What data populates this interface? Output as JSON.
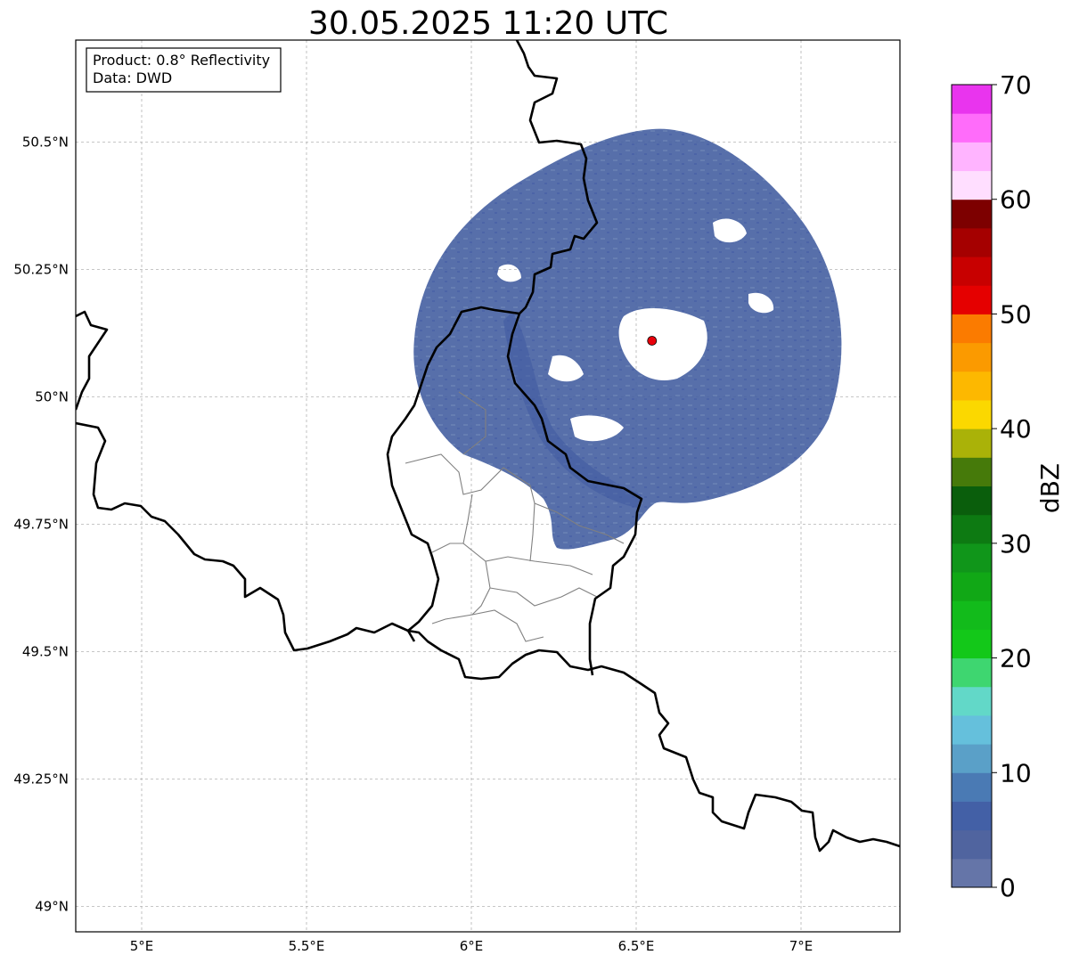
{
  "title": "30.05.2025 11:20 UTC",
  "info_box": {
    "product_line": "Product: 0.8° Reflectivity",
    "data_line": "Data: DWD"
  },
  "map": {
    "lon_range": [
      4.8,
      7.3
    ],
    "lat_range": [
      48.95,
      50.7
    ],
    "lon_ticks": [
      {
        "value": 5.0,
        "label": "5°E"
      },
      {
        "value": 5.5,
        "label": "5.5°E"
      },
      {
        "value": 6.0,
        "label": "6°E"
      },
      {
        "value": 6.5,
        "label": "6.5°E"
      },
      {
        "value": 7.0,
        "label": "7°E"
      }
    ],
    "lat_ticks": [
      {
        "value": 50.5,
        "label": "50.5°N"
      },
      {
        "value": 50.25,
        "label": "50.25°N"
      },
      {
        "value": 50.0,
        "label": "50°N"
      },
      {
        "value": 49.75,
        "label": "49.75°N"
      },
      {
        "value": 49.5,
        "label": "49.5°N"
      },
      {
        "value": 49.25,
        "label": "49.25°N"
      },
      {
        "value": 49.0,
        "label": "49°N"
      }
    ],
    "grid": true,
    "radar_site": {
      "lon": 6.548,
      "lat": 50.11,
      "color": "#e8000b"
    },
    "echo_color": "#4a64a4",
    "border_color": "#000000",
    "district_color": "#808080"
  },
  "colorbar": {
    "label": "dBZ",
    "min": 0,
    "max": 70,
    "step": 2.5,
    "ticks": [
      {
        "value": 0,
        "label": "0"
      },
      {
        "value": 10,
        "label": "10"
      },
      {
        "value": 20,
        "label": "20"
      },
      {
        "value": 30,
        "label": "30"
      },
      {
        "value": 40,
        "label": "40"
      },
      {
        "value": 50,
        "label": "50"
      },
      {
        "value": 60,
        "label": "60"
      },
      {
        "value": 70,
        "label": "70"
      }
    ],
    "colors": [
      "#6575a8",
      "#50649f",
      "#4360a6",
      "#4a7ab4",
      "#5aa0c8",
      "#65c0dc",
      "#62d8c8",
      "#3ed670",
      "#13c819",
      "#12bb1b",
      "#11a816",
      "#10961a",
      "#0d7a12",
      "#0a5e0c",
      "#467a0a",
      "#aab208",
      "#fbd800",
      "#fdb800",
      "#fb9a00",
      "#fb7b00",
      "#e50000",
      "#c80000",
      "#a50000",
      "#7d0000",
      "#ffdeff",
      "#ffb4ff",
      "#ff6cfa",
      "#e934ee"
    ]
  }
}
